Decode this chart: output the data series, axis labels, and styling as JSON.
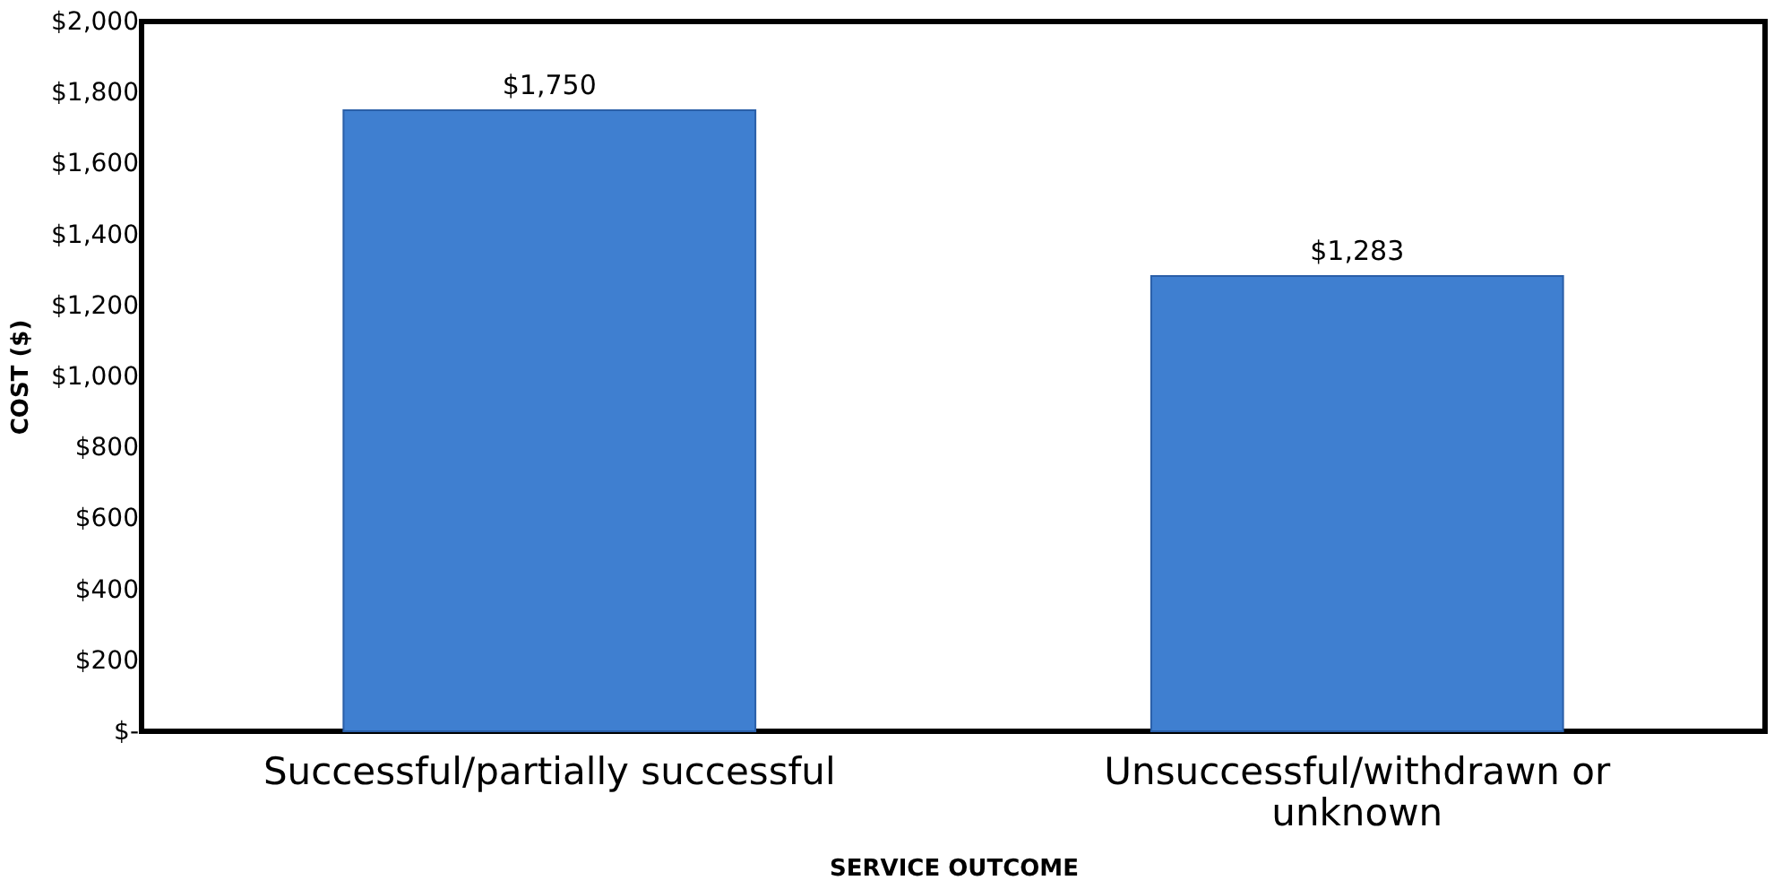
{
  "chart_data": {
    "type": "bar",
    "xlabel": "SERVICE OUTCOME",
    "ylabel": "COST ($)",
    "categories": [
      "Successful/partially successful",
      "Unsuccessful/withdrawn or unknown"
    ],
    "values": [
      1750,
      1283
    ],
    "color": "#3f7fd0",
    "value_labels": [
      "$1,750",
      "$1,283"
    ],
    "ylim": [
      0,
      2000
    ],
    "yticks": [
      {
        "value": 0,
        "label": "$-"
      },
      {
        "value": 200,
        "label": "$200"
      },
      {
        "value": 400,
        "label": "$400"
      },
      {
        "value": 600,
        "label": "$600"
      },
      {
        "value": 800,
        "label": "$800"
      },
      {
        "value": 1000,
        "label": "$1,000"
      },
      {
        "value": 1200,
        "label": "$1,200"
      },
      {
        "value": 1400,
        "label": "$1,400"
      },
      {
        "value": 1600,
        "label": "$1,600"
      },
      {
        "value": 1800,
        "label": "$1,800"
      },
      {
        "value": 2000,
        "label": "$2,000"
      }
    ],
    "grid": false
  }
}
